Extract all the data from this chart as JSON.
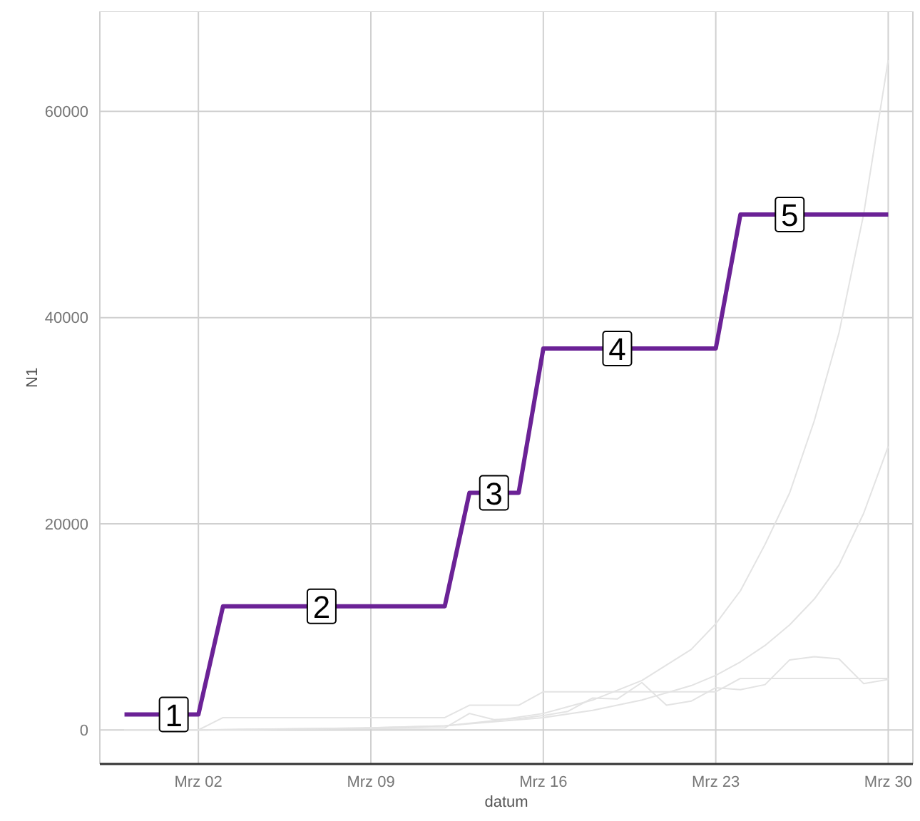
{
  "chart_data": {
    "type": "line",
    "xlabel": "datum",
    "ylabel": "N1",
    "xlim": [
      "--02-27",
      "--03-31"
    ],
    "ylim": [
      -3300,
      69700
    ],
    "xticks": [
      {
        "value": "--03-02",
        "label": "Mrz 02"
      },
      {
        "value": "--03-09",
        "label": "Mrz 09"
      },
      {
        "value": "--03-16",
        "label": "Mrz 16"
      },
      {
        "value": "--03-23",
        "label": "Mrz 23"
      },
      {
        "value": "--03-30",
        "label": "Mrz 30"
      }
    ],
    "yticks": [
      0,
      20000,
      40000,
      60000
    ],
    "grid": true,
    "marker": "none",
    "line_style": "solid",
    "series": [
      {
        "color": "#e3e3e3",
        "x": [
          "--02-28",
          "--03-02",
          "--03-09",
          "--03-12",
          "--03-14",
          "--03-16",
          "--03-18",
          "--03-20",
          "--03-22",
          "--03-23",
          "--03-24",
          "--03-25",
          "--03-26",
          "--03-27",
          "--03-28",
          "--03-29",
          "--03-30"
        ],
        "values": [
          0,
          0,
          200,
          400,
          900,
          1600,
          2900,
          4800,
          7800,
          10300,
          13500,
          18000,
          23000,
          30000,
          38500,
          50000,
          65000
        ]
      },
      {
        "color": "#e3e3e3",
        "x": [
          "--02-28",
          "--03-02",
          "--03-09",
          "--03-12",
          "--03-16",
          "--03-18",
          "--03-20",
          "--03-22",
          "--03-23",
          "--03-24",
          "--03-25",
          "--03-26",
          "--03-27",
          "--03-28",
          "--03-29",
          "--03-30"
        ],
        "values": [
          0,
          0,
          200,
          400,
          1200,
          1900,
          2900,
          4300,
          5300,
          6600,
          8200,
          10200,
          12700,
          16000,
          21000,
          27500
        ]
      },
      {
        "color": "#e3e3e3",
        "x": [
          "--02-28",
          "--03-02",
          "--03-03",
          "--03-12",
          "--03-13",
          "--03-15",
          "--03-16",
          "--03-23",
          "--03-24",
          "--03-30"
        ],
        "values": [
          0,
          0,
          1200,
          1200,
          2400,
          2400,
          3700,
          3700,
          5000,
          5000
        ]
      },
      {
        "color": "#e3e3e3",
        "x": [
          "--02-28",
          "--03-02",
          "--03-12",
          "--03-13",
          "--03-14",
          "--03-15",
          "--03-16",
          "--03-17",
          "--03-18",
          "--03-19",
          "--03-20",
          "--03-21",
          "--03-22",
          "--03-23",
          "--03-24",
          "--03-25",
          "--03-26",
          "--03-27",
          "--03-28",
          "--03-29",
          "--03-30"
        ],
        "values": [
          0,
          0,
          200,
          1600,
          1000,
          1100,
          1400,
          1800,
          3100,
          3000,
          4600,
          2400,
          2800,
          4100,
          3900,
          4400,
          6800,
          7100,
          6900,
          4500,
          4900
        ]
      },
      {
        "color": "#6b2296",
        "x": [
          "--02-28",
          "--02-29",
          "--03-01",
          "--03-02",
          "--03-03",
          "--03-04",
          "--03-05",
          "--03-06",
          "--03-07",
          "--03-08",
          "--03-09",
          "--03-10",
          "--03-11",
          "--03-12",
          "--03-13",
          "--03-14",
          "--03-15",
          "--03-16",
          "--03-17",
          "--03-18",
          "--03-19",
          "--03-20",
          "--03-21",
          "--03-22",
          "--03-23",
          "--03-24",
          "--03-25",
          "--03-26",
          "--03-27",
          "--03-28",
          "--03-29",
          "--03-30"
        ],
        "values": [
          1500,
          1500,
          1500,
          1500,
          12000,
          12000,
          12000,
          12000,
          12000,
          12000,
          12000,
          12000,
          12000,
          12000,
          23000,
          23000,
          23000,
          37000,
          37000,
          37000,
          37000,
          37000,
          37000,
          37000,
          37000,
          50000,
          50000,
          50000,
          50000,
          50000,
          50000,
          50000
        ]
      }
    ],
    "annotations": [
      {
        "text": "1",
        "x": "--03-01",
        "y": 1500
      },
      {
        "text": "2",
        "x": "--03-07",
        "y": 12000
      },
      {
        "text": "3",
        "x": "--03-14",
        "y": 23000
      },
      {
        "text": "4",
        "x": "--03-19",
        "y": 37000
      },
      {
        "text": "5",
        "x": "--03-26",
        "y": 50000
      }
    ]
  }
}
